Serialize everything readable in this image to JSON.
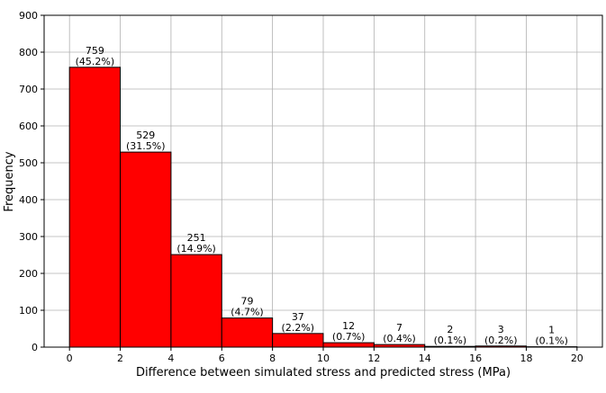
{
  "chart_data": {
    "type": "bar",
    "title": "",
    "xlabel": "Difference between simulated stress and predicted stress (MPa)",
    "ylabel": "Frequency",
    "bins": [
      {
        "start": 0,
        "end": 2,
        "count": 759,
        "pct": "(45.2%)"
      },
      {
        "start": 2,
        "end": 4,
        "count": 529,
        "pct": "(31.5%)"
      },
      {
        "start": 4,
        "end": 6,
        "count": 251,
        "pct": "(14.9%)"
      },
      {
        "start": 6,
        "end": 8,
        "count": 79,
        "pct": "(4.7%)"
      },
      {
        "start": 8,
        "end": 10,
        "count": 37,
        "pct": "(2.2%)"
      },
      {
        "start": 10,
        "end": 12,
        "count": 12,
        "pct": "(0.7%)"
      },
      {
        "start": 12,
        "end": 14,
        "count": 7,
        "pct": "(0.4%)"
      },
      {
        "start": 14,
        "end": 16,
        "count": 2,
        "pct": "(0.1%)"
      },
      {
        "start": 16,
        "end": 18,
        "count": 3,
        "pct": "(0.2%)"
      },
      {
        "start": 18,
        "end": 20,
        "count": 1,
        "pct": "(0.1%)"
      }
    ],
    "xlim": [
      -1,
      21
    ],
    "ylim": [
      0,
      900
    ],
    "xticks": [
      0,
      2,
      4,
      6,
      8,
      10,
      12,
      14,
      16,
      18,
      20
    ],
    "yticks": [
      0,
      100,
      200,
      300,
      400,
      500,
      600,
      700,
      800,
      900
    ],
    "grid": true,
    "bar_color": "#ff0000",
    "edge_color": "#000000",
    "grid_color": "#b0b0b0"
  }
}
